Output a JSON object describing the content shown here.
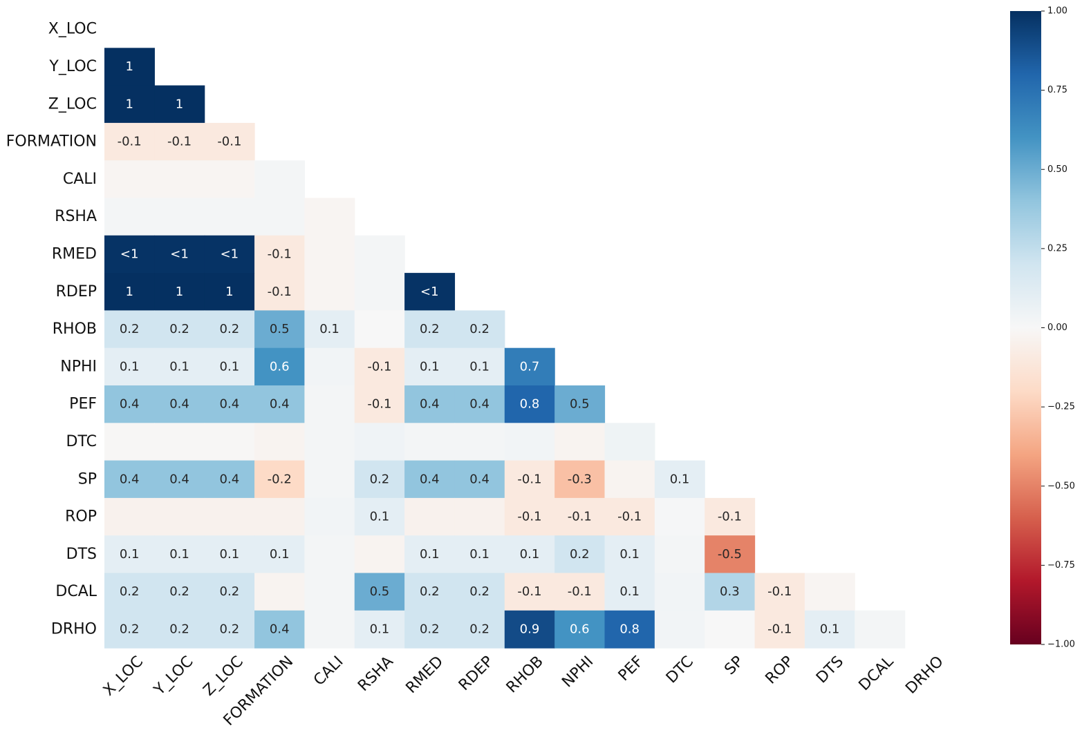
{
  "chart_data": {
    "type": "heatmap",
    "title": "",
    "xlabel": "",
    "ylabel": "",
    "labels": [
      "X_LOC",
      "Y_LOC",
      "Z_LOC",
      "FORMATION",
      "CALI",
      "RSHA",
      "RMED",
      "RDEP",
      "RHOB",
      "NPHI",
      "PEF",
      "DTC",
      "SP",
      "ROP",
      "DTS",
      "DCAL",
      "DRHO"
    ],
    "mask": "upper-triangle-including-diagonal",
    "rows": [
      {
        "label": "X_LOC",
        "values": []
      },
      {
        "label": "Y_LOC",
        "values": [
          1
        ]
      },
      {
        "label": "Z_LOC",
        "values": [
          1,
          1
        ]
      },
      {
        "label": "FORMATION",
        "values": [
          -0.1,
          -0.1,
          -0.1
        ]
      },
      {
        "label": "CALI",
        "values": [
          -0.02,
          -0.02,
          -0.02,
          0.02
        ]
      },
      {
        "label": "RSHA",
        "values": [
          0.02,
          0.02,
          0.02,
          0.02,
          -0.02
        ]
      },
      {
        "label": "RMED",
        "values": [
          0.99,
          0.99,
          0.99,
          -0.1,
          -0.02,
          0.02
        ]
      },
      {
        "label": "RDEP",
        "values": [
          1,
          1,
          1,
          -0.1,
          -0.02,
          0.02,
          0.99
        ]
      },
      {
        "label": "RHOB",
        "values": [
          0.2,
          0.2,
          0.2,
          0.5,
          0.1,
          0.0,
          0.2,
          0.2
        ]
      },
      {
        "label": "NPHI",
        "values": [
          0.1,
          0.1,
          0.1,
          0.6,
          0.03,
          -0.1,
          0.1,
          0.1,
          0.7
        ]
      },
      {
        "label": "PEF",
        "values": [
          0.4,
          0.4,
          0.4,
          0.4,
          0.02,
          -0.1,
          0.4,
          0.4,
          0.8,
          0.5
        ]
      },
      {
        "label": "DTC",
        "values": [
          -0.01,
          -0.01,
          -0.01,
          -0.03,
          0.02,
          0.04,
          0.02,
          0.02,
          0.03,
          -0.03,
          0.05
        ]
      },
      {
        "label": "SP",
        "values": [
          0.4,
          0.4,
          0.4,
          -0.2,
          0.02,
          0.2,
          0.4,
          0.4,
          -0.1,
          -0.3,
          -0.03,
          0.1
        ]
      },
      {
        "label": "ROP",
        "values": [
          -0.04,
          -0.04,
          -0.04,
          -0.04,
          0.03,
          0.1,
          -0.04,
          -0.04,
          -0.1,
          -0.1,
          -0.1,
          0.01,
          -0.1
        ]
      },
      {
        "label": "DTS",
        "values": [
          0.1,
          0.1,
          0.1,
          0.1,
          0.02,
          -0.03,
          0.1,
          0.1,
          0.1,
          0.2,
          0.1,
          0.02,
          -0.5
        ]
      },
      {
        "label": "DCAL",
        "values": [
          0.2,
          0.2,
          0.2,
          -0.03,
          0.02,
          0.5,
          0.2,
          0.2,
          -0.1,
          -0.1,
          0.1,
          0.03,
          0.3,
          -0.1,
          -0.02
        ]
      },
      {
        "label": "DRHO",
        "values": [
          0.2,
          0.2,
          0.2,
          0.4,
          0.02,
          0.1,
          0.2,
          0.2,
          0.9,
          0.6,
          0.8,
          0.03,
          0.0,
          -0.1,
          0.1,
          0.02
        ]
      }
    ],
    "cell_labels": [
      [],
      [
        "1"
      ],
      [
        "1",
        "1"
      ],
      [
        "-0.1",
        "-0.1",
        "-0.1"
      ],
      [
        "",
        "",
        "",
        ""
      ],
      [
        "",
        "",
        "",
        "",
        ""
      ],
      [
        "<1",
        "<1",
        "<1",
        "-0.1",
        "",
        ""
      ],
      [
        "1",
        "1",
        "1",
        "-0.1",
        "",
        "",
        "<1"
      ],
      [
        "0.2",
        "0.2",
        "0.2",
        "0.5",
        "0.1",
        "",
        "0.2",
        "0.2"
      ],
      [
        "0.1",
        "0.1",
        "0.1",
        "0.6",
        "",
        "-0.1",
        "0.1",
        "0.1",
        "0.7"
      ],
      [
        "0.4",
        "0.4",
        "0.4",
        "0.4",
        "",
        "-0.1",
        "0.4",
        "0.4",
        "0.8",
        "0.5"
      ],
      [
        "",
        "",
        "",
        "",
        "",
        "",
        "",
        "",
        "",
        "",
        ""
      ],
      [
        "0.4",
        "0.4",
        "0.4",
        "-0.2",
        "",
        "0.2",
        "0.4",
        "0.4",
        "-0.1",
        "-0.3",
        "",
        "0.1"
      ],
      [
        "",
        "",
        "",
        "",
        "",
        "0.1",
        "",
        "",
        "-0.1",
        "-0.1",
        "-0.1",
        "",
        "-0.1"
      ],
      [
        "0.1",
        "0.1",
        "0.1",
        "0.1",
        "",
        "",
        "0.1",
        "0.1",
        "0.1",
        "0.2",
        "0.1",
        "",
        "-0.5"
      ],
      [
        "0.2",
        "0.2",
        "0.2",
        "",
        "",
        "0.5",
        "0.2",
        "0.2",
        "-0.1",
        "-0.1",
        "0.1",
        "",
        "0.3",
        "-0.1",
        ""
      ],
      [
        "0.2",
        "0.2",
        "0.2",
        "0.4",
        "",
        "0.1",
        "0.2",
        "0.2",
        "0.9",
        "0.6",
        "0.8",
        "",
        "",
        "-0.1",
        "0.1",
        ""
      ]
    ],
    "vmin": -1,
    "vmax": 1,
    "colormap": "RdBu",
    "colorbar": {
      "ticks": [
        1.0,
        0.75,
        0.5,
        0.25,
        0.0,
        -0.25,
        -0.5,
        -0.75,
        -1.0
      ],
      "tick_labels": [
        "1.00",
        "0.75",
        "0.50",
        "0.25",
        "0.00",
        "−0.25",
        "−0.50",
        "−0.75",
        "−1.00"
      ]
    }
  }
}
